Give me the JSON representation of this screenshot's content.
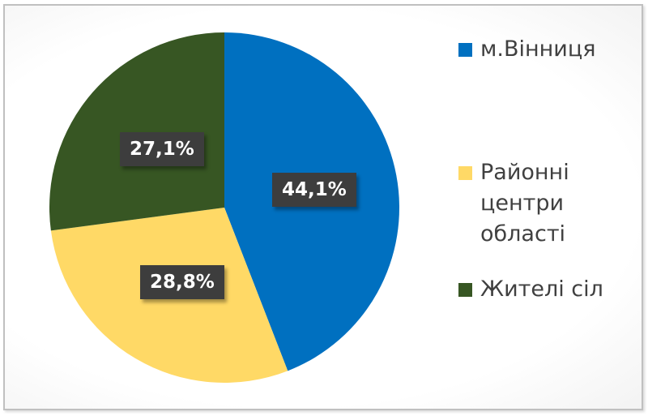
{
  "chart_data": {
    "type": "pie",
    "start_angle": "12 o'clock",
    "direction": "clockwise",
    "categories": [
      "м.Вінниця",
      "Районні центри області",
      "Жителі сіл"
    ],
    "legend_lines": [
      [
        "м.Вінниця"
      ],
      [
        "Районні",
        "центри",
        "області"
      ],
      [
        "Жителі сіл"
      ]
    ],
    "values": [
      44.1,
      28.8,
      27.1
    ],
    "data_labels": [
      "44,1%",
      "28,8%",
      "27,1%"
    ],
    "colors": [
      "#0070c0",
      "#ffd966",
      "#375623"
    ],
    "legend_position": "right"
  }
}
